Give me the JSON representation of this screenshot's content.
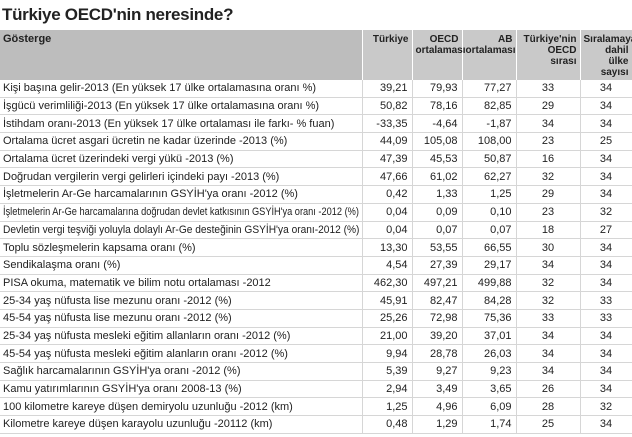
{
  "title": "Türkiye OECD'nin neresinde?",
  "table": {
    "header": [
      "Gösterge",
      "Türkiye",
      "OECD ortalaması",
      "AB ortalaması",
      "Türkiye'nin OECD sırası",
      "Sıralamaya dahil ülke sayısı"
    ],
    "rows": [
      [
        "Kişi başına gelir-2013 (En yüksek 17 ülke ortalamasına oranı %)",
        "39,21",
        "79,93",
        "77,27",
        "33",
        "34"
      ],
      [
        "İşgücü verimliliği-2013 (En yüksek 17 ülke ortalamasına oranı %)",
        "50,82",
        "78,16",
        "82,85",
        "29",
        "34"
      ],
      [
        "İstihdam oranı-2013 (En yüksek 17 ülke ortalaması ile farkı- % fuan)",
        "-33,35",
        "-4,64",
        "-1,87",
        "34",
        "34"
      ],
      [
        "Ortalama ücret asgari ücretin ne kadar üzerinde -2013 (%)",
        "44,09",
        "105,08",
        "108,00",
        "23",
        "25"
      ],
      [
        "Ortalama ücret üzerindeki vergi yükü -2013 (%)",
        "47,39",
        "45,53",
        "50,87",
        "16",
        "34"
      ],
      [
        "Doğrudan vergilerin vergi gelirleri içindeki payı -2013 (%)",
        "47,66",
        "61,02",
        "62,27",
        "32",
        "34"
      ],
      [
        "İşletmelerin Ar-Ge harcamalarının GSYİH'ya oranı -2012 (%)",
        "0,42",
        "1,33",
        "1,25",
        "29",
        "34"
      ],
      [
        "İşletmelerin Ar-Ge harcamalarına doğrudan devlet katkısının GSYİH'ya oranı -2012 (%)",
        "0,04",
        "0,09",
        "0,10",
        "23",
        "32"
      ],
      [
        "Devletin vergi teşviği yoluyla dolaylı Ar-Ge desteğinin GSYİH'ya oranı-2012 (%)",
        "0,04",
        "0,07",
        "0,07",
        "18",
        "27"
      ],
      [
        "Toplu sözleşmelerin kapsama oranı (%)",
        "13,30",
        "53,55",
        "66,55",
        "30",
        "34"
      ],
      [
        "Sendikalaşma oranı (%)",
        "4,54",
        "27,39",
        "29,17",
        "34",
        "34"
      ],
      [
        "PISA okuma, matematik ve bilim notu ortalaması -2012",
        "462,30",
        "497,21",
        "499,88",
        "32",
        "34"
      ],
      [
        "25-34 yaş nüfusta lise mezunu oranı -2012 (%)",
        "45,91",
        "82,47",
        "84,28",
        "32",
        "33"
      ],
      [
        "45-54 yaş nüfusta lise mezunu oranı -2012 (%)",
        "25,26",
        "72,98",
        "75,36",
        "33",
        "33"
      ],
      [
        "25-34 yaş nüfusta mesleki eğitim allanların oranı -2012 (%)",
        "21,00",
        "39,20",
        "37,01",
        "34",
        "34"
      ],
      [
        "45-54 yaş nüfusta mesleki eğitim alanların oranı -2012 (%)",
        "9,94",
        "28,78",
        "26,03",
        "34",
        "34"
      ],
      [
        "Sağlık harcamalarının GSYİH'ya oranı -2012 (%)",
        "5,39",
        "9,27",
        "9,23",
        "34",
        "34"
      ],
      [
        "Kamu yatırımlarının GSYİH'ya oranı 2008-13 (%)",
        "2,94",
        "3,49",
        "3,65",
        "26",
        "34"
      ],
      [
        "100 kilometre kareye düşen demiryolu uzunluğu -2012 (km)",
        "1,25",
        "4,96",
        "6,09",
        "28",
        "32"
      ],
      [
        "Kilometre kareye düşen karayolu uzunluğu -20112 (km)",
        "0,48",
        "1,29",
        "1,74",
        "25",
        "34"
      ]
    ]
  }
}
